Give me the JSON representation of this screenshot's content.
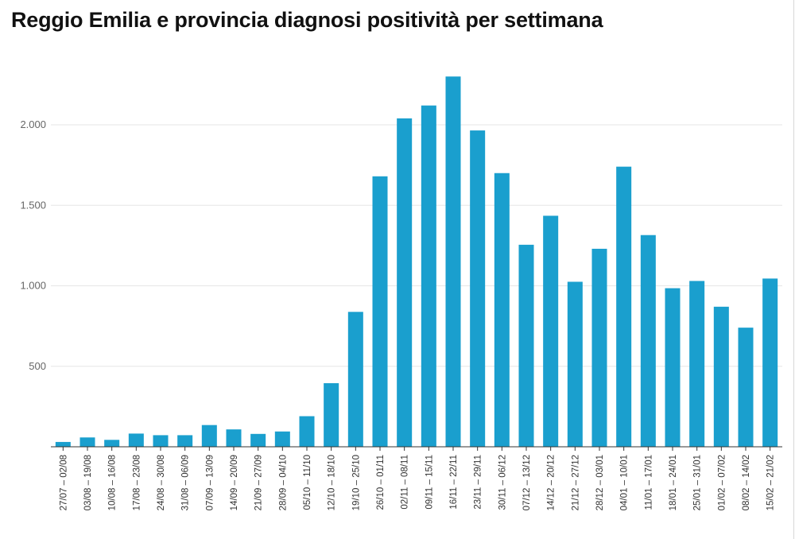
{
  "chart_data": {
    "type": "bar",
    "title": "Reggio Emilia e provincia diagnosi positività per settimana",
    "xlabel": "",
    "ylabel": "",
    "ylim": [
      0,
      2300
    ],
    "yticks": [
      500,
      1000,
      1500,
      2000
    ],
    "ytick_labels": [
      "500",
      "1.000",
      "1.500",
      "2.000"
    ],
    "grid": true,
    "bar_color": "#1a9fce",
    "categories": [
      "27/07 – 02/08",
      "03/08 – 19/08",
      "10/08 – 16/08",
      "17/08 – 23/08",
      "24/08 – 30/08",
      "31/08 – 06/09",
      "07/09 – 13/09",
      "14/09 – 20/09",
      "21/09 – 27/09",
      "28/09 – 04/10",
      "05/10 – 11/10",
      "12/10 – 18/10",
      "19/10 – 25/10",
      "26/10 – 01/11",
      "02/11 – 08/11",
      "09/11 – 15/11",
      "16/11 – 22/11",
      "23/11 – 29/11",
      "30/11 – 06/12",
      "07/12 – 13/12",
      "14/12 – 20/12",
      "21/12 – 27/12",
      "28/12 – 03/01",
      "04/01 – 10/01",
      "11/01 – 17/01",
      "18/01 – 24/01",
      "25/01 – 31/01",
      "01/02 – 07/02",
      "08/02 – 14/02",
      "15/02 – 21/02"
    ],
    "values": [
      30,
      58,
      43,
      82,
      72,
      72,
      135,
      108,
      80,
      95,
      190,
      395,
      838,
      1680,
      2040,
      2120,
      2300,
      1965,
      1700,
      1255,
      1435,
      1025,
      1230,
      1740,
      1315,
      985,
      1030,
      870,
      740,
      1045
    ]
  }
}
